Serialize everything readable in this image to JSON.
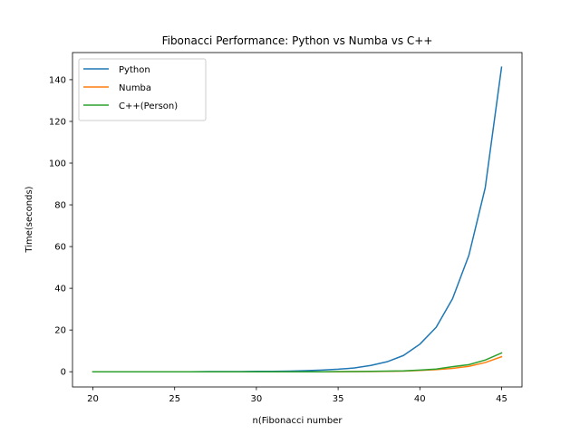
{
  "chart_data": {
    "type": "line",
    "title": "Fibonacci Performance: Python vs Numba vs C++",
    "xlabel": "n(Fibonacci number",
    "ylabel": "Time(seconds)",
    "xlim": [
      18.75,
      46.25
    ],
    "ylim": [
      -7.3,
      153.0
    ],
    "xticks": [
      20,
      25,
      30,
      35,
      40,
      45
    ],
    "yticks": [
      0,
      20,
      40,
      60,
      80,
      100,
      120,
      140
    ],
    "grid": false,
    "legend_position": "top-left",
    "x": [
      20,
      21,
      22,
      23,
      24,
      25,
      26,
      27,
      28,
      29,
      30,
      31,
      32,
      33,
      34,
      35,
      36,
      37,
      38,
      39,
      40,
      41,
      42,
      43,
      44,
      45
    ],
    "series": [
      {
        "name": "Python",
        "color": "#1f77b4",
        "values": [
          0.0,
          0.0,
          0.0,
          0.0,
          0.0,
          0.0,
          0.0,
          0.1,
          0.1,
          0.1,
          0.2,
          0.2,
          0.3,
          0.5,
          0.8,
          1.2,
          1.8,
          3.0,
          4.8,
          7.8,
          13.2,
          21.3,
          35.0,
          55.8,
          88.2,
          146.0
        ]
      },
      {
        "name": "Numba",
        "color": "#ff7f0e",
        "values": [
          0.0,
          0.0,
          0.0,
          0.0,
          0.0,
          0.0,
          0.0,
          0.0,
          0.0,
          0.0,
          0.0,
          0.0,
          0.0,
          0.0,
          0.0,
          0.0,
          0.1,
          0.1,
          0.2,
          0.3,
          0.6,
          1.0,
          1.6,
          2.6,
          4.4,
          7.2
        ]
      },
      {
        "name": "C++(Person)",
        "color": "#2ca02c",
        "values": [
          0.0,
          0.0,
          0.0,
          0.0,
          0.0,
          0.0,
          0.0,
          0.0,
          0.0,
          0.0,
          0.0,
          0.0,
          0.0,
          0.0,
          0.0,
          0.1,
          0.1,
          0.2,
          0.3,
          0.4,
          0.8,
          1.3,
          2.4,
          3.4,
          5.6,
          9.0
        ]
      }
    ]
  }
}
